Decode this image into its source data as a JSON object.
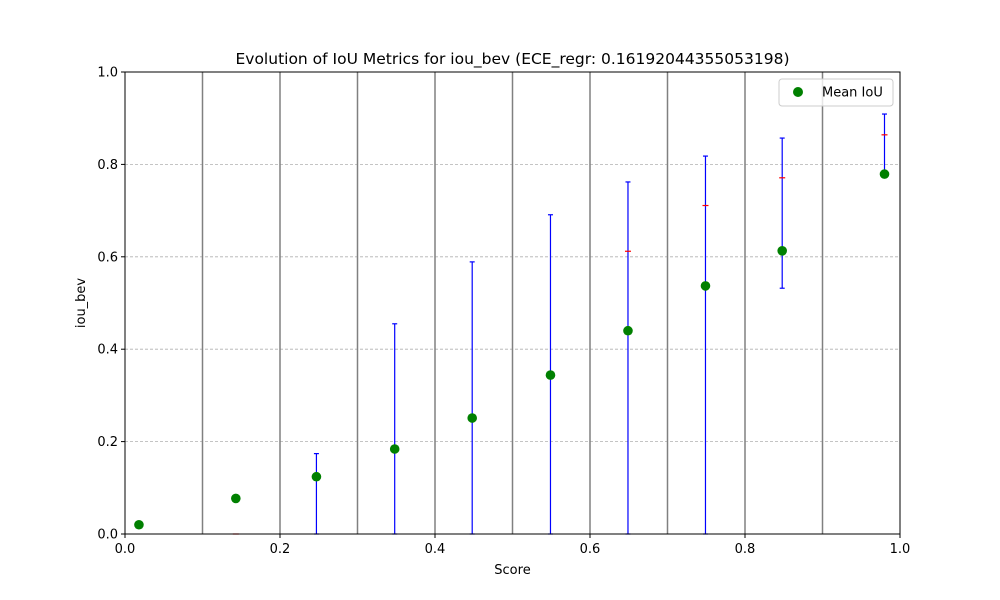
{
  "chart_data": {
    "type": "scatter",
    "title": "Evolution of IoU Metrics for iou_bev (ECE_regr: 0.16192044355053198)",
    "xlabel": "Score",
    "ylabel": "iou_bev",
    "xlim": [
      0.0,
      1.0
    ],
    "ylim": [
      0.0,
      1.0
    ],
    "xticks": [
      "0.0",
      "0.2",
      "0.4",
      "0.6",
      "0.8",
      "1.0"
    ],
    "yticks": [
      "0.0",
      "0.2",
      "0.4",
      "0.6",
      "0.8",
      "1.0"
    ],
    "grid": "horizontal dashed",
    "legend_position": "top-right",
    "bin_edges": [
      0.1,
      0.2,
      0.3,
      0.4,
      0.5,
      0.6,
      0.7,
      0.8,
      0.9
    ],
    "series": [
      {
        "name": "Mean IoU",
        "color": "#008000",
        "x": [
          0.018,
          0.143,
          0.247,
          0.348,
          0.448,
          0.549,
          0.649,
          0.749,
          0.848,
          0.98
        ],
        "y": [
          0.02,
          0.077,
          0.124,
          0.184,
          0.251,
          0.344,
          0.44,
          0.537,
          0.613,
          0.779
        ],
        "upper": [
          null,
          null,
          0.174,
          0.455,
          0.589,
          0.691,
          0.762,
          0.818,
          0.857,
          0.909
        ],
        "lower": [
          null,
          null,
          0.0,
          0.0,
          0.0,
          0.0,
          0.0,
          0.0,
          0.532,
          0.781
        ],
        "median": [
          null,
          0.0,
          null,
          null,
          null,
          0.337,
          0.612,
          0.711,
          0.771,
          0.864
        ]
      }
    ],
    "colors": {
      "marker": "#008000",
      "errorbar": "#0000ff",
      "median": "#ff0000",
      "bin_line": "#808080",
      "grid": "#b0b0b0"
    }
  }
}
